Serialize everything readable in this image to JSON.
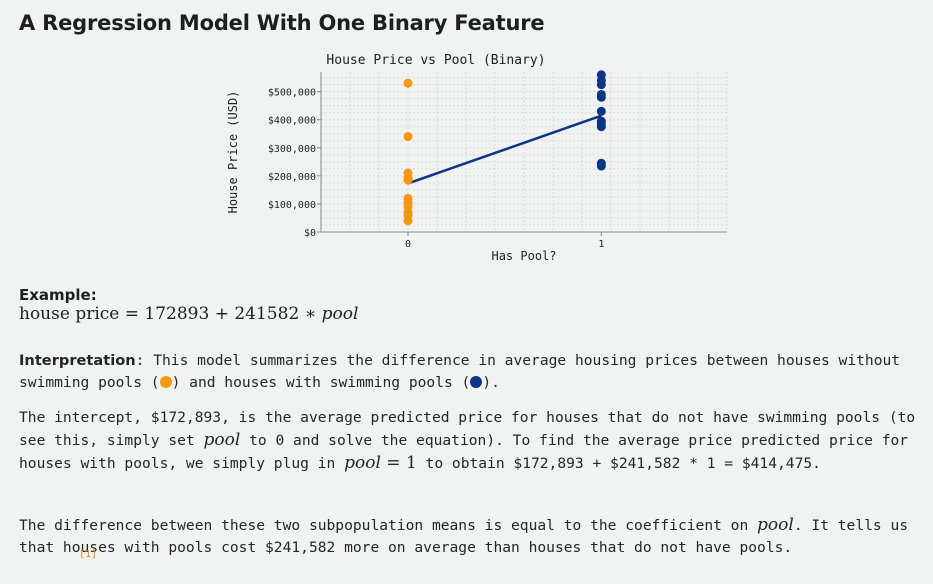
{
  "page_title": "A Regression Model With One Binary Feature",
  "example": {
    "label": "Example:",
    "eq_lhs": "house price",
    "eq_mid": " = 172893 + 241582 ∗ ",
    "eq_var": "pool"
  },
  "interpretation": {
    "label": "Interpretation",
    "text1": ": This model summarizes the difference in average housing prices between houses without swimming pools (",
    "text2": ") and houses with swimming pools (",
    "text3": ").",
    "no_pool_color": "#f7970f",
    "pool_color": "#0b3587"
  },
  "paragraph2": {
    "t1": "The intercept, $172,893, is the average predicted price for houses that do not have swimming pools (to see this, simply set ",
    "v1": "pool",
    "t2": " to 0 and solve the equation). To find the average price predicted price for houses with pools, we simply plug in ",
    "v2": "pool",
    "eq": " = 1",
    "t3": " to obtain $172,893 + $241,582 * 1 = $414,475."
  },
  "paragraph3": {
    "t1": "The difference between these two subpopulation means is equal to the coefficient on ",
    "v1": "pool",
    "t2": ". It tells us that houses with pools cost $241,582 more on average than houses that do not have pools."
  },
  "citation": "[1]",
  "chart_data": {
    "type": "scatter",
    "title": "House Price vs Pool (Binary)",
    "xlabel": "Has Pool?",
    "ylabel": "House Price (USD)",
    "xticks": [
      0,
      1
    ],
    "xlim": [
      -0.45,
      1.65
    ],
    "yticks": [
      0,
      100000,
      200000,
      300000,
      400000,
      500000
    ],
    "ytick_labels": [
      "$0",
      "$100,000",
      "$200,000",
      "$300,000",
      "$400,000",
      "$500,000"
    ],
    "ylim": [
      0,
      570000
    ],
    "grid": true,
    "series": [
      {
        "color": "#f7970f",
        "x": [
          0,
          0,
          0,
          0,
          0,
          0,
          0,
          0,
          0,
          0,
          0
        ],
        "y": [
          530000,
          340000,
          210000,
          195000,
          185000,
          120000,
          105000,
          90000,
          70000,
          60000,
          40000
        ]
      },
      {
        "color": "#0b3587",
        "x": [
          1,
          1,
          1,
          1,
          1,
          1,
          1,
          1,
          1,
          1,
          1
        ],
        "y": [
          560000,
          540000,
          525000,
          490000,
          480000,
          430000,
          395000,
          385000,
          375000,
          245000,
          235000
        ]
      }
    ],
    "fit_line": {
      "x": [
        0,
        1
      ],
      "y": [
        172893,
        414475
      ],
      "color": "#0b3587"
    }
  }
}
